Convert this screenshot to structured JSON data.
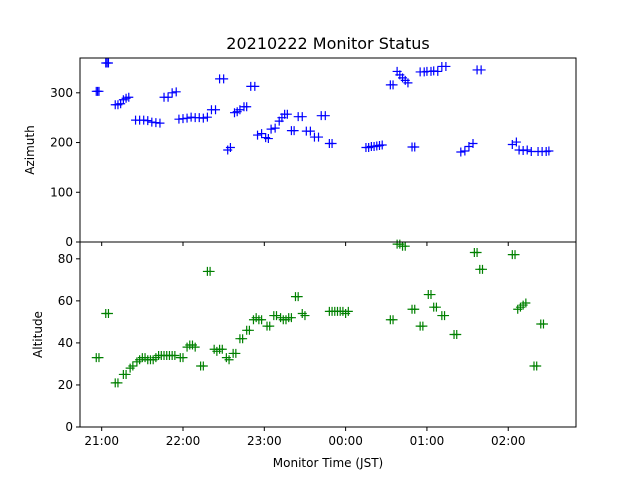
{
  "figure": {
    "title": "20210222 Monitor Status",
    "xlabel": "Monitor Time (JST)"
  },
  "chart_data": [
    {
      "type": "scatter",
      "panel": "top",
      "ylabel": "Azimuth",
      "ylim": [
        0,
        370
      ],
      "yticks": [
        0,
        100,
        200,
        300
      ],
      "xlim": [
        "20:44",
        "02:50"
      ],
      "xticks": [
        "21:00",
        "22:00",
        "23:00",
        "00:00",
        "01:00",
        "02:00"
      ],
      "grid": false,
      "series": [
        {
          "color": "#0000ff",
          "marker": "+",
          "points": [
            [
              "20:56",
              303
            ],
            [
              "20:57",
              303
            ],
            [
              "20:58",
              303
            ],
            [
              "21:03",
              360
            ],
            [
              "21:04",
              360
            ],
            [
              "21:05",
              360
            ],
            [
              "21:10",
              276
            ],
            [
              "21:12",
              276
            ],
            [
              "21:14",
              278
            ],
            [
              "21:16",
              286
            ],
            [
              "21:18",
              289
            ],
            [
              "21:20",
              291
            ],
            [
              "21:25",
              245
            ],
            [
              "21:28",
              245
            ],
            [
              "21:31",
              245
            ],
            [
              "21:34",
              244
            ],
            [
              "21:37",
              241
            ],
            [
              "21:40",
              240
            ],
            [
              "21:43",
              239
            ],
            [
              "21:46",
              291
            ],
            [
              "21:49",
              291
            ],
            [
              "21:52",
              300
            ],
            [
              "21:55",
              302
            ],
            [
              "21:57",
              247
            ],
            [
              "22:00",
              248
            ],
            [
              "22:03",
              249
            ],
            [
              "22:06",
              251
            ],
            [
              "22:09",
              250
            ],
            [
              "22:12",
              250
            ],
            [
              "22:15",
              249
            ],
            [
              "22:18",
              251
            ],
            [
              "22:21",
              266
            ],
            [
              "22:24",
              266
            ],
            [
              "22:27",
              328
            ],
            [
              "22:30",
              328
            ],
            [
              "22:33",
              185
            ],
            [
              "22:35",
              190
            ],
            [
              "22:38",
              260
            ],
            [
              "22:40",
              262
            ],
            [
              "22:42",
              266
            ],
            [
              "22:45",
              272
            ],
            [
              "22:47",
              272
            ],
            [
              "22:50",
              313
            ],
            [
              "22:53",
              313
            ],
            [
              "22:55",
              215
            ],
            [
              "22:58",
              218
            ],
            [
              "23:01",
              210
            ],
            [
              "23:03",
              208
            ],
            [
              "23:05",
              227
            ],
            [
              "23:08",
              229
            ],
            [
              "23:11",
              243
            ],
            [
              "23:13",
              250
            ],
            [
              "23:15",
              257
            ],
            [
              "23:17",
              257
            ],
            [
              "23:20",
              224
            ],
            [
              "23:22",
              224
            ],
            [
              "23:25",
              252
            ],
            [
              "23:28",
              252
            ],
            [
              "23:31",
              223
            ],
            [
              "23:34",
              223
            ],
            [
              "23:37",
              211
            ],
            [
              "23:40",
              211
            ],
            [
              "23:42",
              254
            ],
            [
              "23:45",
              254
            ],
            [
              "23:48",
              198
            ],
            [
              "23:50",
              198
            ],
            [
              "00:15",
              190
            ],
            [
              "00:17",
              190
            ],
            [
              "00:19",
              192
            ],
            [
              "00:21",
              192
            ],
            [
              "00:23",
              193
            ],
            [
              "00:25",
              194
            ],
            [
              "00:27",
              195
            ],
            [
              "00:33",
              316
            ],
            [
              "00:35",
              316
            ],
            [
              "00:38",
              343
            ],
            [
              "00:40",
              336
            ],
            [
              "00:42",
              330
            ],
            [
              "00:44",
              325
            ],
            [
              "00:46",
              320
            ],
            [
              "00:49",
              191
            ],
            [
              "00:51",
              191
            ],
            [
              "00:55",
              342
            ],
            [
              "00:58",
              342
            ],
            [
              "01:00",
              343
            ],
            [
              "01:03",
              343
            ],
            [
              "01:05",
              344
            ],
            [
              "01:08",
              343
            ],
            [
              "01:11",
              353
            ],
            [
              "01:14",
              353
            ],
            [
              "01:25",
              181
            ],
            [
              "01:28",
              183
            ],
            [
              "01:31",
              192
            ],
            [
              "01:34",
              198
            ],
            [
              "01:37",
              346
            ],
            [
              "01:40",
              346
            ],
            [
              "02:03",
              196
            ],
            [
              "02:06",
              201
            ],
            [
              "02:08",
              185
            ],
            [
              "02:11",
              184
            ],
            [
              "02:14",
              185
            ],
            [
              "02:17",
              182
            ],
            [
              "02:22",
              182
            ],
            [
              "02:25",
              182
            ],
            [
              "02:28",
              182
            ],
            [
              "02:30",
              183
            ]
          ]
        }
      ]
    },
    {
      "type": "scatter",
      "panel": "bottom",
      "ylabel": "Altitude",
      "ylim": [
        0,
        88
      ],
      "yticks": [
        0,
        20,
        40,
        60,
        80
      ],
      "xlim": [
        "20:44",
        "02:50"
      ],
      "xticks": [
        "21:00",
        "22:00",
        "23:00",
        "00:00",
        "01:00",
        "02:00"
      ],
      "grid": false,
      "series": [
        {
          "color": "#008000",
          "marker": "+",
          "points": [
            [
              "20:56",
              33
            ],
            [
              "20:58",
              33
            ],
            [
              "21:03",
              54
            ],
            [
              "21:05",
              54
            ],
            [
              "21:10",
              21
            ],
            [
              "21:12",
              21
            ],
            [
              "21:16",
              25
            ],
            [
              "21:18",
              25
            ],
            [
              "21:21",
              28
            ],
            [
              "21:23",
              29
            ],
            [
              "21:26",
              31
            ],
            [
              "21:28",
              32
            ],
            [
              "21:30",
              33
            ],
            [
              "21:32",
              33
            ],
            [
              "21:34",
              32
            ],
            [
              "21:36",
              32
            ],
            [
              "21:38",
              32
            ],
            [
              "21:40",
              33
            ],
            [
              "21:42",
              34
            ],
            [
              "21:44",
              34
            ],
            [
              "21:46",
              34
            ],
            [
              "21:48",
              34
            ],
            [
              "21:50",
              34
            ],
            [
              "21:52",
              34
            ],
            [
              "21:54",
              34
            ],
            [
              "21:58",
              33
            ],
            [
              "22:00",
              33
            ],
            [
              "22:03",
              38
            ],
            [
              "22:05",
              39
            ],
            [
              "22:07",
              39
            ],
            [
              "22:09",
              38
            ],
            [
              "22:13",
              29
            ],
            [
              "22:15",
              29
            ],
            [
              "22:18",
              74
            ],
            [
              "22:20",
              74
            ],
            [
              "22:23",
              37
            ],
            [
              "22:25",
              36
            ],
            [
              "22:27",
              37
            ],
            [
              "22:29",
              37
            ],
            [
              "22:32",
              33
            ],
            [
              "22:34",
              32
            ],
            [
              "22:37",
              35
            ],
            [
              "22:39",
              35
            ],
            [
              "22:42",
              42
            ],
            [
              "22:44",
              42
            ],
            [
              "22:47",
              46
            ],
            [
              "22:49",
              46
            ],
            [
              "22:52",
              51
            ],
            [
              "22:54",
              52
            ],
            [
              "22:56",
              51
            ],
            [
              "22:58",
              51
            ],
            [
              "23:02",
              48
            ],
            [
              "23:04",
              48
            ],
            [
              "23:07",
              53
            ],
            [
              "23:09",
              53
            ],
            [
              "23:12",
              52
            ],
            [
              "23:14",
              51
            ],
            [
              "23:16",
              51
            ],
            [
              "23:18",
              52
            ],
            [
              "23:20",
              52
            ],
            [
              "23:23",
              62
            ],
            [
              "23:25",
              62
            ],
            [
              "23:28",
              54
            ],
            [
              "23:30",
              53
            ],
            [
              "23:48",
              55
            ],
            [
              "23:50",
              55
            ],
            [
              "23:52",
              55
            ],
            [
              "23:54",
              55
            ],
            [
              "23:56",
              55
            ],
            [
              "23:58",
              55
            ],
            [
              "00:00",
              54
            ],
            [
              "00:02",
              55
            ],
            [
              "00:33",
              51
            ],
            [
              "00:35",
              51
            ],
            [
              "00:38",
              87
            ],
            [
              "00:40",
              87
            ],
            [
              "00:42",
              86
            ],
            [
              "00:44",
              86
            ],
            [
              "00:49",
              56
            ],
            [
              "00:51",
              56
            ],
            [
              "00:55",
              48
            ],
            [
              "00:57",
              48
            ],
            [
              "01:01",
              63
            ],
            [
              "01:03",
              63
            ],
            [
              "01:05",
              57
            ],
            [
              "01:07",
              57
            ],
            [
              "01:11",
              53
            ],
            [
              "01:13",
              53
            ],
            [
              "01:20",
              44
            ],
            [
              "01:22",
              44
            ],
            [
              "01:35",
              83
            ],
            [
              "01:37",
              83
            ],
            [
              "01:39",
              75
            ],
            [
              "01:41",
              75
            ],
            [
              "02:03",
              82
            ],
            [
              "02:05",
              82
            ],
            [
              "02:07",
              56
            ],
            [
              "02:09",
              57
            ],
            [
              "02:11",
              58
            ],
            [
              "02:13",
              59
            ],
            [
              "02:19",
              29
            ],
            [
              "02:21",
              29
            ],
            [
              "02:24",
              49
            ],
            [
              "02:26",
              49
            ]
          ]
        }
      ]
    }
  ]
}
